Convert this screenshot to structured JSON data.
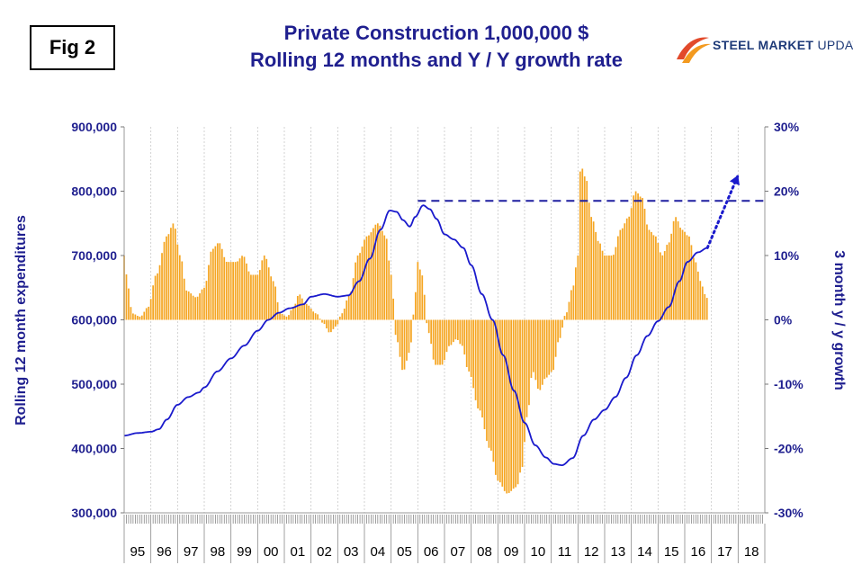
{
  "fig_label": "Fig 2",
  "logo": {
    "word1": "STEEL MARKET",
    "word2": "UPDATE",
    "colors": [
      "#e24a2b",
      "#f39a1f",
      "#1e3a78"
    ]
  },
  "chart_data": {
    "type": "bar+line",
    "title": "Private Construction 1,000,000 $",
    "subtitle": "Rolling 12 months and Y / Y growth rate",
    "ylabel_left": "Rolling 12 month expenditures",
    "ylabel_right": "3 month y / y growth",
    "left_axis": {
      "min": 300000,
      "max": 900000,
      "ticks": [
        "300,000",
        "400,000",
        "500,000",
        "600,000",
        "700,000",
        "800,000",
        "900,000"
      ]
    },
    "right_axis": {
      "min": -30,
      "max": 30,
      "ticks": [
        "-30%",
        "-20%",
        "-10%",
        "0%",
        "10%",
        "20%",
        "30%"
      ]
    },
    "x_labels": [
      "95",
      "96",
      "97",
      "98",
      "99",
      "00",
      "01",
      "02",
      "03",
      "04",
      "05",
      "06",
      "07",
      "08",
      "09",
      "10",
      "11",
      "12",
      "13",
      "14",
      "15",
      "16",
      "17",
      "18"
    ],
    "x_start_year": 1995,
    "x_end_year": 2019,
    "colors": {
      "bars": "#f5a623",
      "line": "#1a1acc",
      "axis_text": "#1f1f8f"
    },
    "bar_series": {
      "name": "3 month y/y growth (%)",
      "anchors": [
        [
          1995.0,
          10
        ],
        [
          1995.15,
          5
        ],
        [
          1995.3,
          1
        ],
        [
          1995.6,
          0.5
        ],
        [
          1995.9,
          2
        ],
        [
          1996.2,
          7
        ],
        [
          1996.6,
          13
        ],
        [
          1996.85,
          15
        ],
        [
          1997.1,
          10
        ],
        [
          1997.35,
          4.5
        ],
        [
          1997.7,
          3.5
        ],
        [
          1998.0,
          5
        ],
        [
          1998.3,
          11
        ],
        [
          1998.55,
          12
        ],
        [
          1998.85,
          9
        ],
        [
          1999.2,
          9
        ],
        [
          1999.45,
          10
        ],
        [
          1999.75,
          7
        ],
        [
          2000.0,
          7
        ],
        [
          2000.25,
          10
        ],
        [
          2000.6,
          6
        ],
        [
          2000.85,
          1
        ],
        [
          2001.1,
          0.5
        ],
        [
          2001.35,
          2
        ],
        [
          2001.55,
          4
        ],
        [
          2001.8,
          2.5
        ],
        [
          2002.2,
          1
        ],
        [
          2002.45,
          -0.5
        ],
        [
          2002.7,
          -2
        ],
        [
          2002.95,
          -1
        ],
        [
          2003.15,
          1
        ],
        [
          2003.45,
          4
        ],
        [
          2003.75,
          10
        ],
        [
          2004.1,
          13
        ],
        [
          2004.5,
          15
        ],
        [
          2004.8,
          13
        ],
        [
          2005.0,
          7
        ],
        [
          2005.2,
          -3
        ],
        [
          2005.45,
          -8
        ],
        [
          2005.7,
          -5
        ],
        [
          2005.85,
          1
        ],
        [
          2006.0,
          9
        ],
        [
          2006.15,
          7
        ],
        [
          2006.4,
          -2
        ],
        [
          2006.65,
          -7
        ],
        [
          2006.9,
          -7
        ],
        [
          2007.2,
          -4
        ],
        [
          2007.45,
          -3
        ],
        [
          2007.65,
          -4
        ],
        [
          2007.9,
          -8
        ],
        [
          2008.3,
          -14
        ],
        [
          2008.7,
          -20
        ],
        [
          2009.0,
          -25
        ],
        [
          2009.35,
          -27
        ],
        [
          2009.7,
          -26
        ],
        [
          2009.9,
          -23
        ],
        [
          2010.1,
          -15
        ],
        [
          2010.3,
          -8
        ],
        [
          2010.55,
          -11
        ],
        [
          2010.8,
          -9
        ],
        [
          2011.05,
          -8
        ],
        [
          2011.3,
          -3
        ],
        [
          2011.55,
          1
        ],
        [
          2011.8,
          5
        ],
        [
          2012.0,
          10
        ],
        [
          2012.1,
          24
        ],
        [
          2012.3,
          22
        ],
        [
          2012.5,
          16
        ],
        [
          2012.8,
          12
        ],
        [
          2013.0,
          10
        ],
        [
          2013.3,
          10
        ],
        [
          2013.6,
          14
        ],
        [
          2013.9,
          16
        ],
        [
          2014.15,
          20
        ],
        [
          2014.4,
          19
        ],
        [
          2014.65,
          14
        ],
        [
          2014.9,
          13
        ],
        [
          2015.15,
          10
        ],
        [
          2015.4,
          12
        ],
        [
          2015.65,
          16
        ],
        [
          2015.9,
          14
        ],
        [
          2016.15,
          13
        ],
        [
          2016.4,
          9
        ],
        [
          2016.6,
          6
        ],
        [
          2016.75,
          4
        ],
        [
          2016.9,
          3
        ]
      ]
    },
    "line_series": {
      "name": "Rolling 12 month expenditures ($M)",
      "anchors": [
        [
          1995.0,
          420000
        ],
        [
          1995.5,
          424000
        ],
        [
          1996.0,
          426000
        ],
        [
          1996.3,
          430000
        ],
        [
          1996.6,
          445000
        ],
        [
          1997.0,
          468000
        ],
        [
          1997.4,
          480000
        ],
        [
          1997.8,
          487000
        ],
        [
          1998.0,
          495000
        ],
        [
          1998.5,
          520000
        ],
        [
          1999.0,
          540000
        ],
        [
          1999.5,
          560000
        ],
        [
          2000.0,
          583000
        ],
        [
          2000.4,
          600000
        ],
        [
          2000.8,
          611000
        ],
        [
          2001.2,
          618000
        ],
        [
          2001.7,
          624000
        ],
        [
          2002.0,
          636000
        ],
        [
          2002.5,
          640000
        ],
        [
          2003.0,
          636000
        ],
        [
          2003.4,
          638000
        ],
        [
          2003.8,
          660000
        ],
        [
          2004.2,
          695000
        ],
        [
          2004.6,
          740000
        ],
        [
          2004.95,
          770000
        ],
        [
          2005.2,
          768000
        ],
        [
          2005.45,
          755000
        ],
        [
          2005.7,
          745000
        ],
        [
          2005.9,
          760000
        ],
        [
          2006.2,
          778000
        ],
        [
          2006.45,
          772000
        ],
        [
          2006.7,
          757000
        ],
        [
          2007.0,
          733000
        ],
        [
          2007.35,
          725000
        ],
        [
          2007.7,
          712000
        ],
        [
          2008.0,
          685000
        ],
        [
          2008.4,
          640000
        ],
        [
          2008.8,
          600000
        ],
        [
          2009.2,
          545000
        ],
        [
          2009.6,
          490000
        ],
        [
          2010.0,
          440000
        ],
        [
          2010.4,
          405000
        ],
        [
          2010.8,
          386000
        ],
        [
          2011.1,
          376000
        ],
        [
          2011.4,
          374000
        ],
        [
          2011.8,
          385000
        ],
        [
          2012.2,
          420000
        ],
        [
          2012.6,
          445000
        ],
        [
          2013.0,
          460000
        ],
        [
          2013.4,
          480000
        ],
        [
          2013.8,
          510000
        ],
        [
          2014.2,
          545000
        ],
        [
          2014.6,
          575000
        ],
        [
          2015.0,
          598000
        ],
        [
          2015.4,
          620000
        ],
        [
          2015.8,
          660000
        ],
        [
          2016.1,
          690000
        ],
        [
          2016.5,
          705000
        ],
        [
          2016.85,
          712000
        ]
      ]
    },
    "reference_line": {
      "value_pct": 18.5,
      "from_year": 2006.0,
      "to_year": 2019.0,
      "style": "dashed"
    },
    "projection": {
      "from": [
        2016.85,
        712000
      ],
      "to": [
        2018.0,
        825000
      ],
      "style": "dotted-arrow"
    }
  }
}
